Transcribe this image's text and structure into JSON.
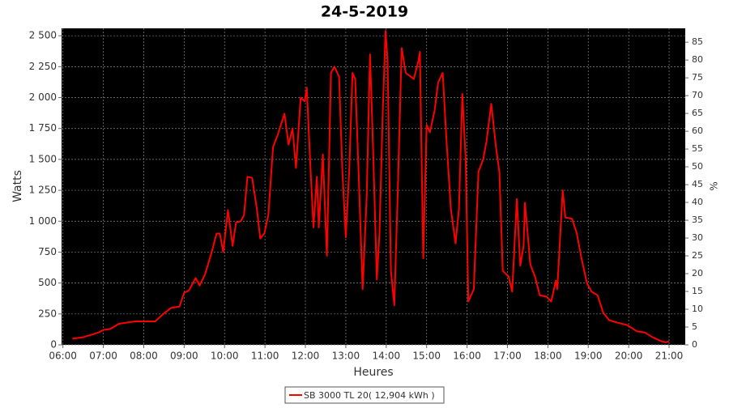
{
  "chart_data": {
    "type": "line",
    "title": "24-5-2019",
    "x_label": "Heures",
    "y_label": "Watts",
    "y2_label": "%",
    "x": [
      374,
      389,
      401,
      413,
      420,
      431,
      443,
      455,
      467,
      480,
      497,
      509,
      521,
      533,
      540,
      547,
      557,
      563,
      571,
      581,
      588,
      593,
      598,
      605,
      612,
      617,
      624,
      629,
      634,
      641,
      648,
      653,
      659,
      665,
      672,
      679,
      689,
      695,
      701,
      706,
      713,
      719,
      722,
      727,
      732,
      737,
      740,
      746,
      752,
      758,
      763,
      770,
      775,
      780,
      785,
      790,
      794,
      799,
      805,
      811,
      816,
      821,
      826,
      830,
      835,
      839,
      842,
      847,
      852,
      857,
      863,
      869,
      881,
      888,
      890,
      895,
      900,
      905,
      912,
      917,
      924,
      929,
      936,
      943,
      948,
      953,
      958,
      962,
      970,
      977,
      984,
      989,
      996,
      1003,
      1008,
      1013,
      1022,
      1027,
      1034,
      1039,
      1044,
      1046,
      1054,
      1061,
      1068,
      1078,
      1085,
      1092,
      1094,
      1102,
      1106,
      1116,
      1123,
      1130,
      1138,
      1145,
      1154,
      1162,
      1171,
      1183,
      1198,
      1212,
      1224,
      1236,
      1248,
      1255,
      1260
    ],
    "series": [
      {
        "name": "SB 3000 TL 20( 12,904 kWh )",
        "color": "#ff0000",
        "values": [
          50,
          60,
          80,
          100,
          120,
          130,
          170,
          180,
          190,
          190,
          190,
          250,
          300,
          310,
          420,
          440,
          540,
          480,
          570,
          750,
          900,
          900,
          750,
          1090,
          800,
          990,
          1000,
          1050,
          1360,
          1350,
          1100,
          860,
          900,
          1050,
          1600,
          1700,
          1870,
          1620,
          1750,
          1430,
          2000,
          1970,
          2080,
          1500,
          950,
          1360,
          950,
          1540,
          720,
          2200,
          2250,
          2170,
          1400,
          870,
          1400,
          2200,
          2150,
          1400,
          450,
          1200,
          2350,
          1500,
          530,
          900,
          1900,
          2540,
          2300,
          600,
          320,
          1200,
          2400,
          2200,
          2150,
          2300,
          2370,
          700,
          1780,
          1720,
          1900,
          2120,
          2200,
          1700,
          1100,
          820,
          1100,
          2030,
          1500,
          350,
          450,
          1400,
          1500,
          1650,
          1950,
          1600,
          1400,
          600,
          550,
          430,
          1180,
          640,
          800,
          1150,
          650,
          550,
          400,
          390,
          350,
          520,
          450,
          1250,
          1030,
          1020,
          900,
          700,
          500,
          430,
          400,
          260,
          200,
          180,
          160,
          110,
          100,
          60,
          30,
          20,
          30
        ]
      }
    ],
    "xlim": [
      358,
      1284
    ],
    "xticks": [
      {
        "value": 360,
        "label": "06:00"
      },
      {
        "value": 420,
        "label": "07:00"
      },
      {
        "value": 480,
        "label": "08:00"
      },
      {
        "value": 540,
        "label": "09:00"
      },
      {
        "value": 600,
        "label": "10:00"
      },
      {
        "value": 660,
        "label": "11:00"
      },
      {
        "value": 720,
        "label": "12:00"
      },
      {
        "value": 780,
        "label": "13:00"
      },
      {
        "value": 840,
        "label": "14:00"
      },
      {
        "value": 900,
        "label": "15:00"
      },
      {
        "value": 960,
        "label": "16:00"
      },
      {
        "value": 1020,
        "label": "17:00"
      },
      {
        "value": 1080,
        "label": "18:00"
      },
      {
        "value": 1140,
        "label": "19:00"
      },
      {
        "value": 1200,
        "label": "20:00"
      },
      {
        "value": 1260,
        "label": "21:00"
      }
    ],
    "ylim": [
      0,
      2560
    ],
    "yticks": [
      0,
      250,
      500,
      750,
      {
        "value": 1000,
        "label": "1 000"
      },
      {
        "value": 1250,
        "label": "1 250"
      },
      {
        "value": 1500,
        "label": "1 500"
      },
      {
        "value": 1750,
        "label": "1 750"
      },
      {
        "value": 2000,
        "label": "2 000"
      },
      {
        "value": 2250,
        "label": "2 250"
      },
      {
        "value": 2500,
        "label": "2 500"
      }
    ],
    "y2lim": [
      0,
      88.9
    ],
    "y2ticks": [
      0,
      5,
      10,
      15,
      20,
      25,
      30,
      35,
      40,
      45,
      50,
      55,
      60,
      65,
      70,
      75,
      80,
      85
    ],
    "grid": true,
    "legend": "bottom"
  }
}
